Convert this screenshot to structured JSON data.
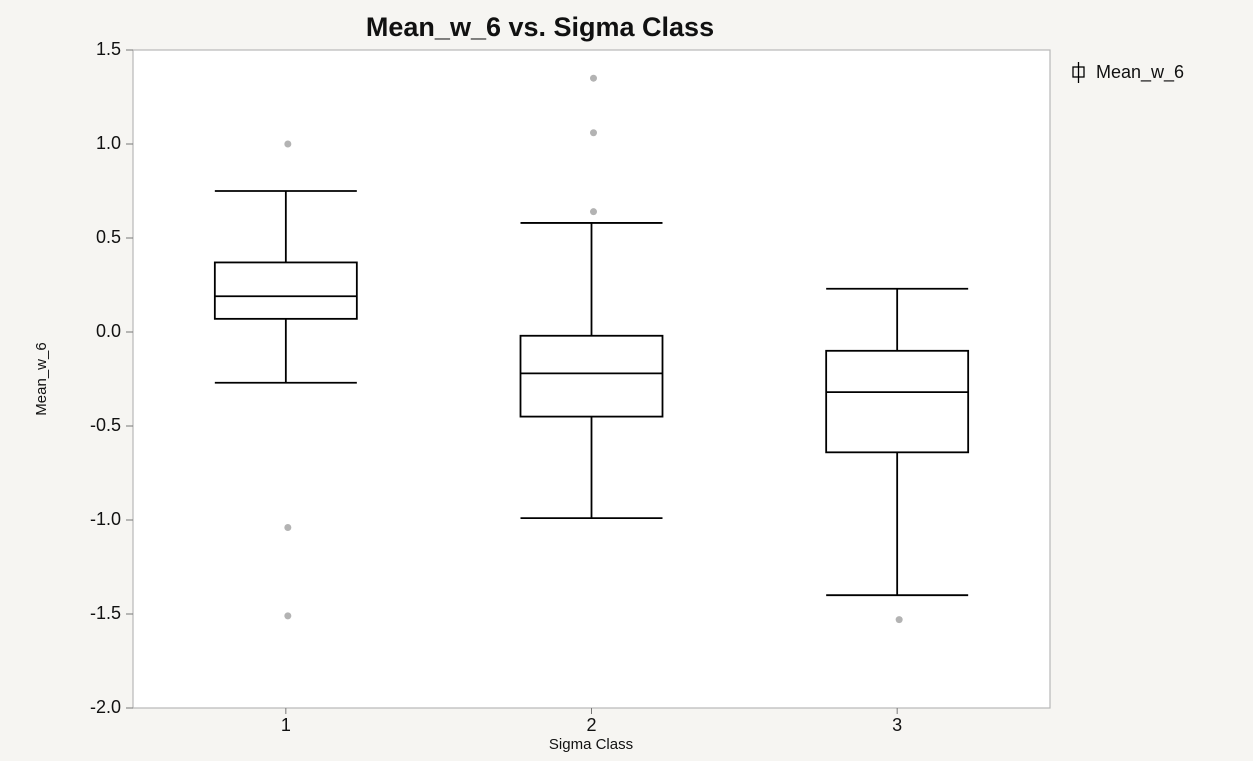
{
  "chart_data": {
    "type": "box",
    "title": "Mean_w_6 vs. Sigma Class",
    "x_label": "Sigma Class",
    "y_label": "Mean_w_6",
    "categories": [
      "1",
      "2",
      "3"
    ],
    "series": [
      {
        "name": "Mean_w_6",
        "color": "#000000",
        "outlier_color": "#b3b3b3",
        "boxes": [
          {
            "min": -0.27,
            "q1": 0.07,
            "median": 0.19,
            "q3": 0.37,
            "max": 0.75,
            "outliers": [
              1.0,
              -1.04,
              -1.51
            ]
          },
          {
            "min": -0.99,
            "q1": -0.45,
            "median": -0.22,
            "q3": -0.02,
            "max": 0.58,
            "outliers": [
              1.35,
              1.06,
              0.64
            ]
          },
          {
            "min": -1.4,
            "q1": -0.64,
            "median": -0.32,
            "q3": -0.1,
            "max": 0.23,
            "outliers": [
              -1.53
            ]
          }
        ]
      }
    ],
    "ylim": [
      -2.0,
      1.5
    ],
    "yticks": [
      1.5,
      {
        "value": 1,
        "label": "1.0"
      },
      0.5,
      {
        "value": 0,
        "label": "0.0"
      },
      -0.5,
      {
        "value": -1,
        "label": "-1.0"
      },
      -1.5,
      {
        "value": -2,
        "label": "-2.0"
      }
    ],
    "grid": false,
    "legend": "right"
  }
}
